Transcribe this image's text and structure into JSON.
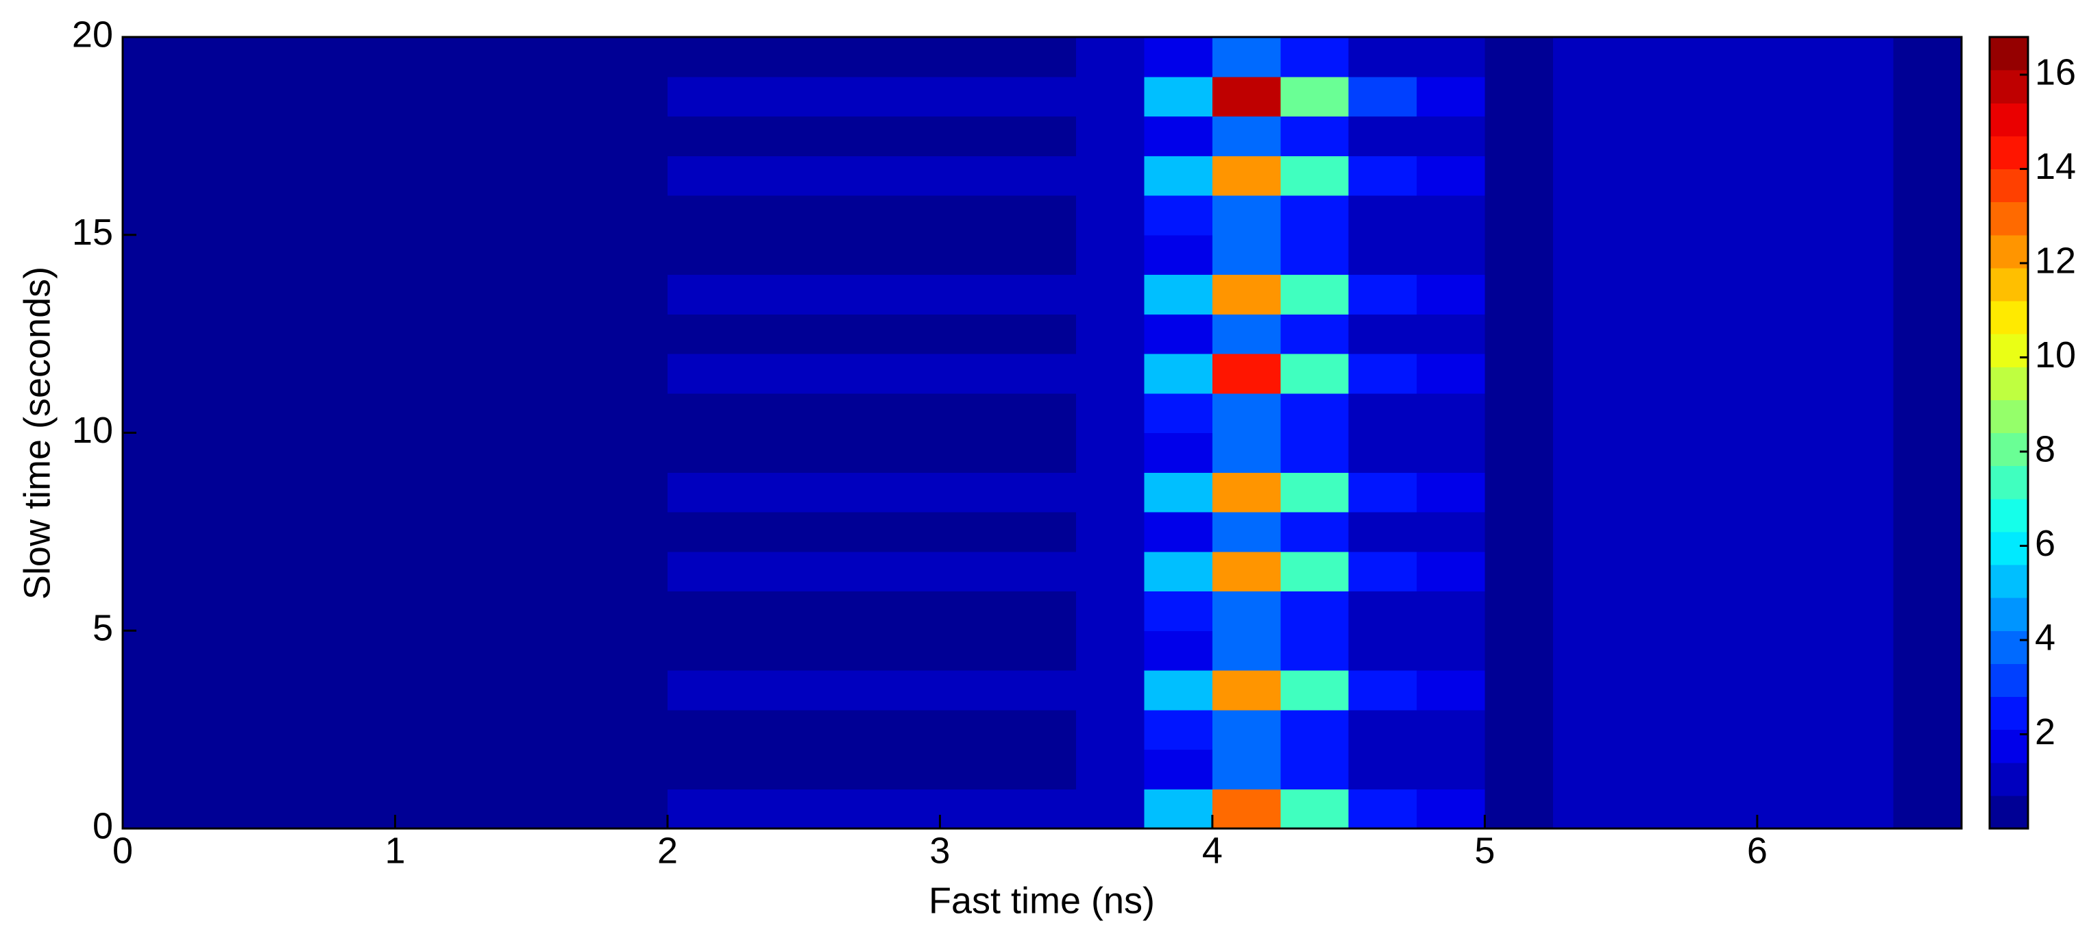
{
  "chart_data": {
    "type": "heatmap",
    "xlabel": "Fast time (ns)",
    "ylabel": "Slow time (seconds)",
    "x": [
      0,
      0.25,
      0.5,
      0.75,
      1,
      1.25,
      1.5,
      1.75,
      2,
      2.25,
      2.5,
      2.75,
      3,
      3.25,
      3.5,
      3.75,
      4,
      4.25,
      4.5,
      4.75,
      5,
      5.25,
      5.5,
      5.75,
      6,
      6.25,
      6.5,
      6.75
    ],
    "y": [
      0,
      1,
      2,
      3,
      4,
      5,
      6,
      7,
      8,
      9,
      10,
      11,
      12,
      13,
      14,
      15,
      16,
      17,
      18,
      19,
      20
    ],
    "z": [
      [
        0,
        0,
        0,
        0,
        0,
        0,
        0.3,
        0.6,
        0.8,
        0.8,
        0.8,
        0.8,
        0.8,
        0.8,
        1,
        5,
        13,
        7,
        2.5,
        1.5,
        0.5,
        1,
        1,
        1,
        1,
        0.9,
        0.2
      ],
      [
        0,
        0,
        0,
        0,
        0,
        0,
        0.3,
        0.5,
        0.6,
        0.6,
        0.6,
        0.6,
        0.6,
        0.6,
        0.8,
        2,
        4,
        2.5,
        1.2,
        1,
        0.4,
        0.8,
        0.8,
        0.8,
        0.8,
        0.8,
        0.2
      ],
      [
        0,
        0,
        0,
        0,
        0,
        0,
        0.3,
        0.5,
        0.6,
        0.6,
        0.6,
        0.6,
        0.6,
        0.6,
        0.8,
        2.5,
        3.5,
        2.5,
        1.2,
        1,
        0.4,
        0.8,
        0.8,
        0.8,
        0.8,
        0.8,
        0.2
      ],
      [
        0,
        0,
        0,
        0,
        0,
        0,
        0.3,
        0.6,
        0.8,
        0.8,
        0.8,
        0.8,
        0.8,
        0.8,
        1,
        5,
        12,
        7,
        2.5,
        1.5,
        0.5,
        1,
        1,
        1,
        1,
        0.9,
        0.2
      ],
      [
        0,
        0,
        0,
        0,
        0,
        0,
        0.3,
        0.5,
        0.6,
        0.6,
        0.6,
        0.6,
        0.6,
        0.6,
        0.8,
        2,
        4,
        2.5,
        1.2,
        1,
        0.4,
        0.8,
        0.8,
        0.8,
        0.8,
        0.8,
        0.2
      ],
      [
        0,
        0,
        0,
        0,
        0,
        0,
        0.3,
        0.5,
        0.6,
        0.6,
        0.6,
        0.6,
        0.6,
        0.6,
        0.8,
        2.5,
        3.5,
        2.5,
        1.2,
        1,
        0.4,
        0.8,
        0.8,
        0.8,
        0.8,
        0.8,
        0.2
      ],
      [
        0,
        0,
        0,
        0,
        0,
        0,
        0.3,
        0.6,
        0.8,
        0.8,
        0.8,
        0.8,
        0.8,
        0.8,
        1,
        5,
        12,
        7,
        2.5,
        1.5,
        0.5,
        1,
        1,
        1,
        1,
        0.9,
        0.2
      ],
      [
        0,
        0,
        0,
        0,
        0,
        0,
        0.3,
        0.5,
        0.6,
        0.6,
        0.6,
        0.6,
        0.6,
        0.6,
        0.8,
        2,
        4,
        2.5,
        1.2,
        1,
        0.4,
        0.8,
        0.8,
        0.8,
        0.8,
        0.8,
        0.2
      ],
      [
        0,
        0,
        0,
        0,
        0,
        0,
        0.3,
        0.6,
        0.8,
        0.8,
        0.8,
        0.8,
        0.8,
        0.8,
        1,
        5,
        12,
        7,
        2.5,
        1.5,
        0.5,
        1,
        1,
        1,
        1,
        0.9,
        0.2
      ],
      [
        0,
        0,
        0,
        0,
        0,
        0,
        0.3,
        0.5,
        0.6,
        0.6,
        0.6,
        0.6,
        0.6,
        0.6,
        0.8,
        2,
        4,
        2.5,
        1.2,
        1,
        0.4,
        0.8,
        0.8,
        0.8,
        0.8,
        0.8,
        0.2
      ],
      [
        0,
        0,
        0,
        0,
        0,
        0,
        0.3,
        0.5,
        0.6,
        0.6,
        0.6,
        0.6,
        0.6,
        0.6,
        0.8,
        2.5,
        3.5,
        2.5,
        1.2,
        1,
        0.4,
        0.8,
        0.8,
        0.8,
        0.8,
        0.8,
        0.2
      ],
      [
        0,
        0,
        0,
        0,
        0,
        0,
        0.3,
        0.6,
        0.8,
        0.8,
        0.8,
        0.8,
        0.8,
        0.8,
        1,
        5,
        14,
        7,
        2.5,
        1.5,
        0.5,
        1,
        1,
        1,
        1,
        0.9,
        0.2
      ],
      [
        0,
        0,
        0,
        0,
        0,
        0,
        0.3,
        0.5,
        0.6,
        0.6,
        0.6,
        0.6,
        0.6,
        0.6,
        0.8,
        2,
        4,
        2.5,
        1.2,
        1,
        0.4,
        0.8,
        0.8,
        0.8,
        0.8,
        0.8,
        0.2
      ],
      [
        0,
        0,
        0,
        0,
        0,
        0,
        0.3,
        0.6,
        0.8,
        0.8,
        0.8,
        0.8,
        0.8,
        0.8,
        1,
        5,
        12,
        7,
        2.5,
        1.5,
        0.5,
        1,
        1,
        1,
        1,
        0.9,
        0.2
      ],
      [
        0,
        0,
        0,
        0,
        0,
        0,
        0.3,
        0.5,
        0.6,
        0.6,
        0.6,
        0.6,
        0.6,
        0.6,
        0.8,
        2,
        4,
        2.5,
        1.2,
        1,
        0.4,
        0.8,
        0.8,
        0.8,
        0.8,
        0.8,
        0.2
      ],
      [
        0,
        0,
        0,
        0,
        0,
        0,
        0.3,
        0.5,
        0.6,
        0.6,
        0.6,
        0.6,
        0.6,
        0.6,
        0.8,
        2.5,
        3.5,
        2.5,
        1.2,
        1,
        0.4,
        0.8,
        0.8,
        0.8,
        0.8,
        0.8,
        0.2
      ],
      [
        0,
        0,
        0,
        0,
        0,
        0,
        0.3,
        0.6,
        0.8,
        0.8,
        0.8,
        0.8,
        0.8,
        0.8,
        1,
        5,
        12,
        7,
        2.5,
        1.5,
        0.5,
        1,
        1,
        1,
        1,
        0.9,
        0.2
      ],
      [
        0,
        0,
        0,
        0,
        0,
        0,
        0.3,
        0.5,
        0.6,
        0.6,
        0.6,
        0.6,
        0.6,
        0.6,
        0.8,
        2,
        4,
        2.5,
        1.2,
        1,
        0.4,
        0.8,
        0.8,
        0.8,
        0.8,
        0.8,
        0.2
      ],
      [
        0,
        0,
        0,
        0,
        0,
        0,
        0.3,
        0.6,
        0.8,
        0.8,
        0.8,
        0.8,
        0.8,
        0.8,
        1,
        5,
        16,
        8,
        3,
        1.5,
        0.5,
        1,
        1,
        1,
        1,
        0.9,
        0.2
      ],
      [
        0,
        0,
        0,
        0,
        0,
        0,
        0.3,
        0.5,
        0.6,
        0.6,
        0.6,
        0.6,
        0.6,
        0.6,
        0.8,
        2,
        3.5,
        2.5,
        1.2,
        1,
        0.4,
        0.8,
        0.8,
        0.8,
        0.8,
        0.8,
        0.2
      ]
    ],
    "xlim": [
      0,
      6.75
    ],
    "ylim": [
      0,
      20
    ],
    "xticks": [
      0,
      1,
      2,
      3,
      4,
      5,
      6
    ],
    "yticks": [
      0,
      5,
      10,
      15,
      20
    ],
    "colormap": "jet",
    "levels": 24,
    "clim": [
      0,
      16.8
    ],
    "cticks": [
      2,
      4,
      6,
      8,
      10,
      12,
      14,
      16
    ]
  }
}
